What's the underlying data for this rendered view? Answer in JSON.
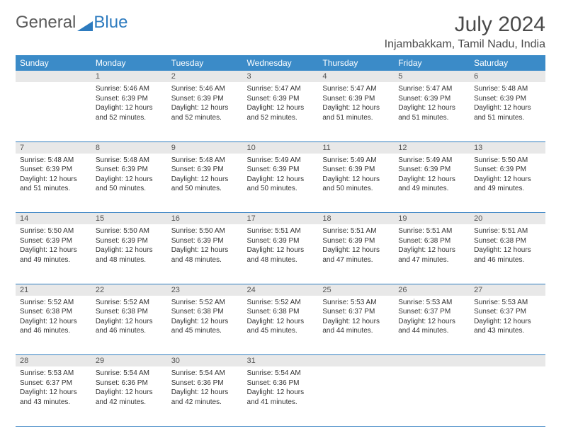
{
  "logo": {
    "text1": "General",
    "text2": "Blue",
    "icon_color": "#2d7bbf"
  },
  "title": "July 2024",
  "location": "Injambakkam, Tamil Nadu, India",
  "colors": {
    "header_bg": "#3b8bc8",
    "header_text": "#ffffff",
    "daynum_bg": "#e8e8e8",
    "cell_border": "#2d7bbf",
    "text": "#333333"
  },
  "weekdays": [
    "Sunday",
    "Monday",
    "Tuesday",
    "Wednesday",
    "Thursday",
    "Friday",
    "Saturday"
  ],
  "weeks": [
    [
      null,
      {
        "n": "1",
        "sr": "5:46 AM",
        "ss": "6:39 PM",
        "dl": "12 hours and 52 minutes."
      },
      {
        "n": "2",
        "sr": "5:46 AM",
        "ss": "6:39 PM",
        "dl": "12 hours and 52 minutes."
      },
      {
        "n": "3",
        "sr": "5:47 AM",
        "ss": "6:39 PM",
        "dl": "12 hours and 52 minutes."
      },
      {
        "n": "4",
        "sr": "5:47 AM",
        "ss": "6:39 PM",
        "dl": "12 hours and 51 minutes."
      },
      {
        "n": "5",
        "sr": "5:47 AM",
        "ss": "6:39 PM",
        "dl": "12 hours and 51 minutes."
      },
      {
        "n": "6",
        "sr": "5:48 AM",
        "ss": "6:39 PM",
        "dl": "12 hours and 51 minutes."
      }
    ],
    [
      {
        "n": "7",
        "sr": "5:48 AM",
        "ss": "6:39 PM",
        "dl": "12 hours and 51 minutes."
      },
      {
        "n": "8",
        "sr": "5:48 AM",
        "ss": "6:39 PM",
        "dl": "12 hours and 50 minutes."
      },
      {
        "n": "9",
        "sr": "5:48 AM",
        "ss": "6:39 PM",
        "dl": "12 hours and 50 minutes."
      },
      {
        "n": "10",
        "sr": "5:49 AM",
        "ss": "6:39 PM",
        "dl": "12 hours and 50 minutes."
      },
      {
        "n": "11",
        "sr": "5:49 AM",
        "ss": "6:39 PM",
        "dl": "12 hours and 50 minutes."
      },
      {
        "n": "12",
        "sr": "5:49 AM",
        "ss": "6:39 PM",
        "dl": "12 hours and 49 minutes."
      },
      {
        "n": "13",
        "sr": "5:50 AM",
        "ss": "6:39 PM",
        "dl": "12 hours and 49 minutes."
      }
    ],
    [
      {
        "n": "14",
        "sr": "5:50 AM",
        "ss": "6:39 PM",
        "dl": "12 hours and 49 minutes."
      },
      {
        "n": "15",
        "sr": "5:50 AM",
        "ss": "6:39 PM",
        "dl": "12 hours and 48 minutes."
      },
      {
        "n": "16",
        "sr": "5:50 AM",
        "ss": "6:39 PM",
        "dl": "12 hours and 48 minutes."
      },
      {
        "n": "17",
        "sr": "5:51 AM",
        "ss": "6:39 PM",
        "dl": "12 hours and 48 minutes."
      },
      {
        "n": "18",
        "sr": "5:51 AM",
        "ss": "6:39 PM",
        "dl": "12 hours and 47 minutes."
      },
      {
        "n": "19",
        "sr": "5:51 AM",
        "ss": "6:38 PM",
        "dl": "12 hours and 47 minutes."
      },
      {
        "n": "20",
        "sr": "5:51 AM",
        "ss": "6:38 PM",
        "dl": "12 hours and 46 minutes."
      }
    ],
    [
      {
        "n": "21",
        "sr": "5:52 AM",
        "ss": "6:38 PM",
        "dl": "12 hours and 46 minutes."
      },
      {
        "n": "22",
        "sr": "5:52 AM",
        "ss": "6:38 PM",
        "dl": "12 hours and 46 minutes."
      },
      {
        "n": "23",
        "sr": "5:52 AM",
        "ss": "6:38 PM",
        "dl": "12 hours and 45 minutes."
      },
      {
        "n": "24",
        "sr": "5:52 AM",
        "ss": "6:38 PM",
        "dl": "12 hours and 45 minutes."
      },
      {
        "n": "25",
        "sr": "5:53 AM",
        "ss": "6:37 PM",
        "dl": "12 hours and 44 minutes."
      },
      {
        "n": "26",
        "sr": "5:53 AM",
        "ss": "6:37 PM",
        "dl": "12 hours and 44 minutes."
      },
      {
        "n": "27",
        "sr": "5:53 AM",
        "ss": "6:37 PM",
        "dl": "12 hours and 43 minutes."
      }
    ],
    [
      {
        "n": "28",
        "sr": "5:53 AM",
        "ss": "6:37 PM",
        "dl": "12 hours and 43 minutes."
      },
      {
        "n": "29",
        "sr": "5:54 AM",
        "ss": "6:36 PM",
        "dl": "12 hours and 42 minutes."
      },
      {
        "n": "30",
        "sr": "5:54 AM",
        "ss": "6:36 PM",
        "dl": "12 hours and 42 minutes."
      },
      {
        "n": "31",
        "sr": "5:54 AM",
        "ss": "6:36 PM",
        "dl": "12 hours and 41 minutes."
      },
      null,
      null,
      null
    ]
  ],
  "labels": {
    "sunrise": "Sunrise:",
    "sunset": "Sunset:",
    "daylight": "Daylight:"
  }
}
